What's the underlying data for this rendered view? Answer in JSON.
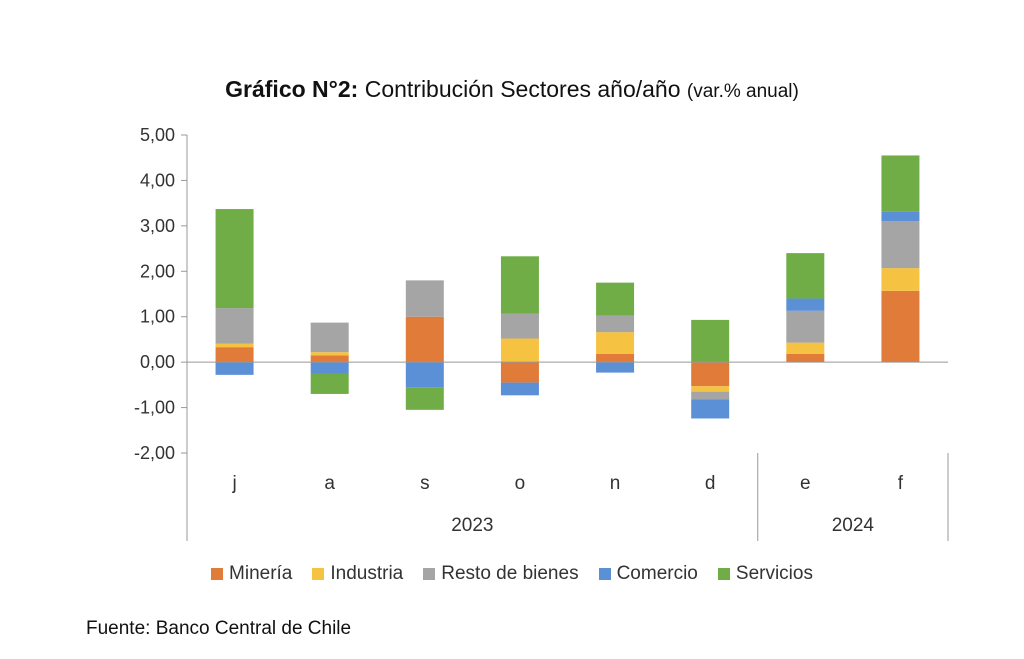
{
  "title": {
    "bold": "Gráfico N°2:",
    "main": " Contribución Sectores año/año ",
    "small": "(var.% anual)"
  },
  "source": "Fuente: Banco Central de Chile",
  "chart_data": {
    "type": "bar",
    "stacked": true,
    "categories": [
      "j",
      "a",
      "s",
      "o",
      "n",
      "d",
      "e",
      "f"
    ],
    "groups": [
      {
        "label": "2023",
        "categories": [
          "j",
          "a",
          "s",
          "o",
          "n",
          "d"
        ]
      },
      {
        "label": "2024",
        "categories": [
          "e",
          "f"
        ]
      }
    ],
    "ylim": [
      -2,
      5
    ],
    "yticks": [
      "5,00",
      "4,00",
      "3,00",
      "2,00",
      "1,00",
      "0,00",
      "-1,00",
      "-2,00"
    ],
    "legend_position": "bottom",
    "series": [
      {
        "name": "Minería",
        "color": "#E07B39",
        "values": [
          0.33,
          0.15,
          1.0,
          -0.45,
          0.18,
          -0.53,
          0.18,
          1.57
        ]
      },
      {
        "name": "Industria",
        "color": "#F5C242",
        "values": [
          0.08,
          0.07,
          0.0,
          0.52,
          0.48,
          -0.12,
          0.25,
          0.5
        ]
      },
      {
        "name": "Resto de bienes",
        "color": "#A5A5A5",
        "values": [
          0.78,
          0.65,
          0.8,
          0.55,
          0.36,
          -0.17,
          0.7,
          1.03
        ]
      },
      {
        "name": "Comercio",
        "color": "#5B8FD6",
        "values": [
          -0.28,
          -0.25,
          -0.55,
          -0.28,
          -0.23,
          -0.42,
          0.27,
          0.22
        ]
      },
      {
        "name": "Servicios",
        "color": "#70AD47",
        "values": [
          2.18,
          -0.45,
          -0.5,
          1.26,
          0.73,
          0.93,
          1.0,
          1.23
        ]
      }
    ]
  }
}
